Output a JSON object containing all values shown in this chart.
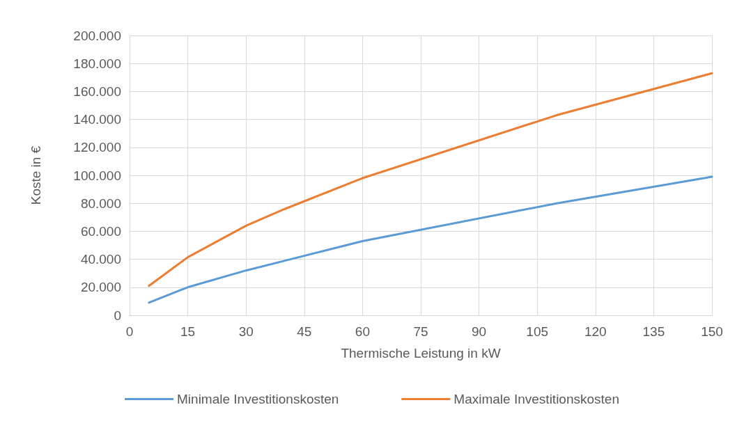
{
  "chart_data": {
    "type": "line",
    "xlabel": "Thermische Leistung in kW",
    "ylabel": "Koste in €",
    "x": [
      5,
      15,
      30,
      40,
      60,
      110,
      150
    ],
    "series": [
      {
        "name": "Minimale Investitionskosten",
        "color": "#5b9bd5",
        "values": [
          9000,
          20000,
          32000,
          39000,
          53000,
          80000,
          99000
        ]
      },
      {
        "name": "Maximale Investitionskosten",
        "color": "#ed7d31",
        "values": [
          21000,
          41500,
          64000,
          76000,
          98000,
          143000,
          173000
        ]
      }
    ],
    "xlim": [
      0,
      150
    ],
    "xticks": [
      0,
      15,
      30,
      45,
      60,
      75,
      90,
      105,
      120,
      135,
      150
    ],
    "ylim": [
      0,
      200000
    ],
    "yticks": [
      {
        "value": 0,
        "label": "0"
      },
      {
        "value": 20000,
        "label": "20.000"
      },
      {
        "value": 40000,
        "label": "40.000"
      },
      {
        "value": 60000,
        "label": "60.000"
      },
      {
        "value": 80000,
        "label": "80.000"
      },
      {
        "value": 100000,
        "label": "100.000"
      },
      {
        "value": 120000,
        "label": "120.000"
      },
      {
        "value": 140000,
        "label": "140.000"
      },
      {
        "value": 160000,
        "label": "160.000"
      },
      {
        "value": 180000,
        "label": "180.000"
      },
      {
        "value": 200000,
        "label": "200.000"
      }
    ],
    "grid": true,
    "legend": "bottom",
    "marker": "none",
    "line_style": "solid"
  }
}
